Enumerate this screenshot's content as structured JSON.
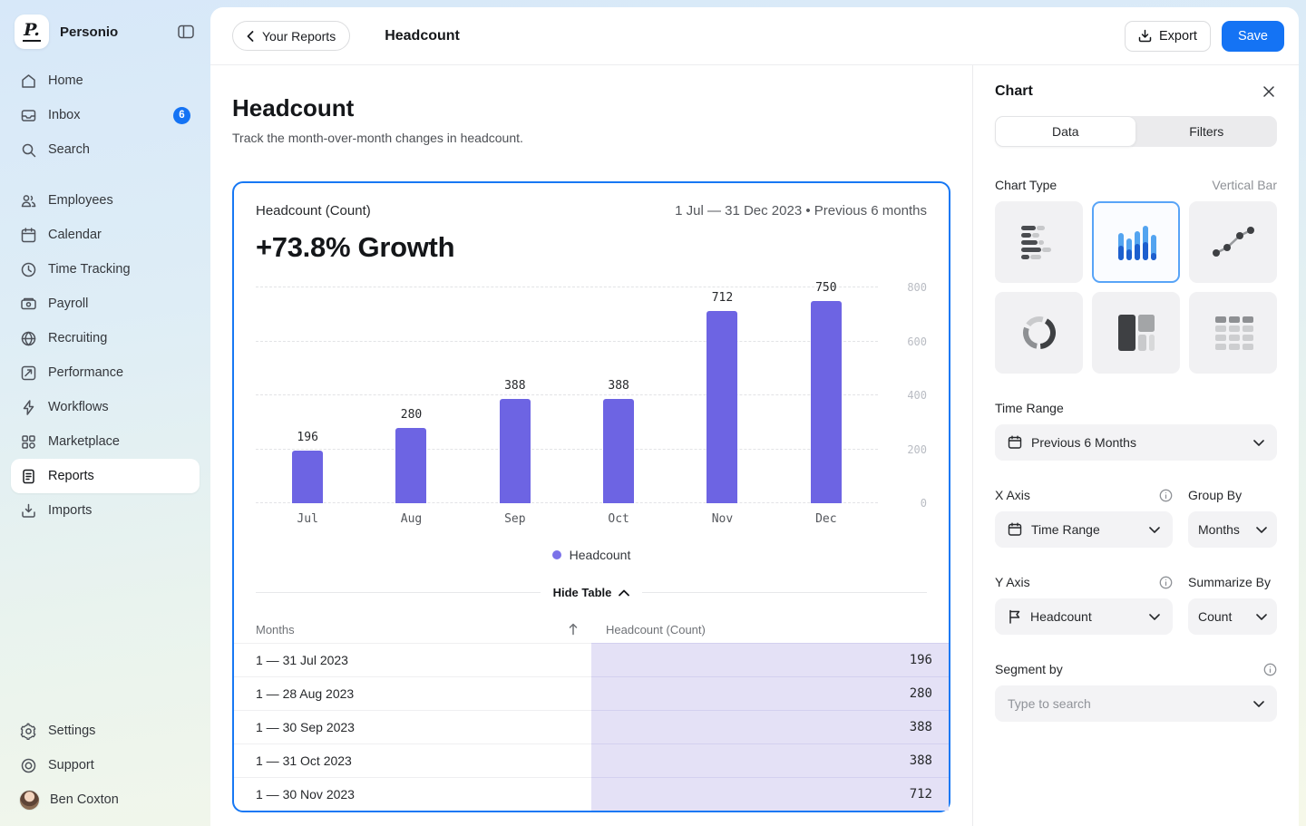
{
  "colors": {
    "accent_blue": "#1473F4",
    "card_border_blue": "#1778F4",
    "bar_purple": "#6D64E3",
    "legend_dot_purple": "#7B72E9",
    "table_highlight_lavender": "#E4E1F6",
    "tile_selected_border": "#58A4F7"
  },
  "sidebar": {
    "logo_text": "P.",
    "brand": "Personio",
    "items": [
      {
        "label": "Home",
        "icon": "home"
      },
      {
        "label": "Inbox",
        "icon": "inbox",
        "badge": "6"
      },
      {
        "label": "Search",
        "icon": "search"
      },
      {
        "label": "Employees",
        "icon": "employees",
        "group_start": true
      },
      {
        "label": "Calendar",
        "icon": "calendar"
      },
      {
        "label": "Time Tracking",
        "icon": "clock"
      },
      {
        "label": "Payroll",
        "icon": "payroll"
      },
      {
        "label": "Recruiting",
        "icon": "globe"
      },
      {
        "label": "Performance",
        "icon": "performance"
      },
      {
        "label": "Workflows",
        "icon": "workflows"
      },
      {
        "label": "Marketplace",
        "icon": "marketplace"
      },
      {
        "label": "Reports",
        "icon": "reports",
        "active": true
      },
      {
        "label": "Imports",
        "icon": "imports"
      }
    ],
    "footer": [
      {
        "label": "Settings",
        "icon": "settings"
      },
      {
        "label": "Support",
        "icon": "support"
      },
      {
        "label": "Ben Coxton",
        "icon": "avatar"
      }
    ]
  },
  "topbar": {
    "back_button": "Your Reports",
    "title": "Headcount",
    "export_label": "Export",
    "save_label": "Save"
  },
  "main": {
    "title": "Headcount",
    "subtitle": "Track the month-over-month changes in headcount.",
    "card": {
      "metric_label": "Headcount (Count)",
      "date_range": "1 Jul — 31 Dec 2023 • Previous 6 months",
      "growth": "+73.8% Growth",
      "legend": "Headcount",
      "hide_table": "Hide Table"
    },
    "table": {
      "columns": [
        "Months",
        "Headcount (Count)"
      ],
      "rows": [
        {
          "month": "1 — 31 Jul 2023",
          "value": "196"
        },
        {
          "month": "1 — 28 Aug 2023",
          "value": "280"
        },
        {
          "month": "1 — 30 Sep 2023",
          "value": "388"
        },
        {
          "month": "1 — 31 Oct 2023",
          "value": "388"
        },
        {
          "month": "1 — 30 Nov 2023",
          "value": "712"
        }
      ]
    }
  },
  "chart_data": {
    "type": "bar",
    "title": "+73.8% Growth",
    "subtitle": "Headcount (Count), 1 Jul — 31 Dec 2023, Previous 6 months",
    "categories": [
      "Jul",
      "Aug",
      "Sep",
      "Oct",
      "Nov",
      "Dec"
    ],
    "series": [
      {
        "name": "Headcount",
        "values": [
          196,
          280,
          388,
          388,
          712,
          750
        ]
      }
    ],
    "y_ticks": [
      0,
      200,
      400,
      600,
      800
    ],
    "ylim": [
      0,
      800
    ],
    "xlabel": "",
    "ylabel": "",
    "axis_side": "right",
    "grid": "horizontal-dashed",
    "value_labels": true,
    "legend_position": "bottom",
    "bar_color": "#6D64E3"
  },
  "panel": {
    "title": "Chart",
    "tabs": [
      {
        "label": "Data",
        "active": true
      },
      {
        "label": "Filters",
        "active": false
      }
    ],
    "chart_type": {
      "label": "Chart Type",
      "value": "Vertical Bar",
      "options": [
        "horizontal-bar",
        "vertical-bar",
        "line",
        "donut",
        "treemap",
        "table"
      ],
      "selected": "vertical-bar"
    },
    "time_range": {
      "label": "Time Range",
      "value": "Previous 6 Months",
      "icon": "calendar"
    },
    "x_axis": {
      "label": "X Axis",
      "value": "Time Range",
      "icon": "calendar"
    },
    "group_by": {
      "label": "Group By",
      "value": "Months"
    },
    "y_axis": {
      "label": "Y Axis",
      "value": "Headcount",
      "icon": "flag"
    },
    "summarize_by": {
      "label": "Summarize By",
      "value": "Count"
    },
    "segment_by": {
      "label": "Segment by",
      "placeholder": "Type to search"
    }
  }
}
